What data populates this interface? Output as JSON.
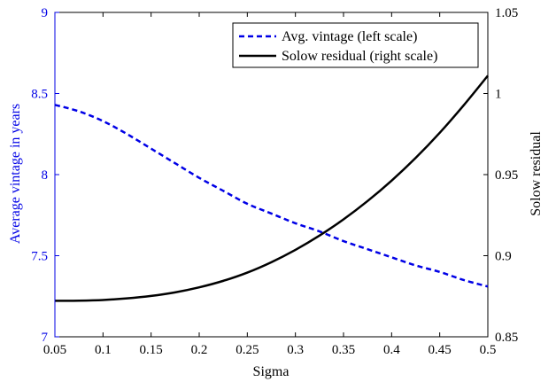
{
  "chart_data": {
    "type": "line",
    "xlabel": "Sigma",
    "ylabel_left": "Average vintage in years",
    "ylabel_right": "Solow residual",
    "xlim": [
      0.05,
      0.5
    ],
    "ylim_left": [
      7,
      9
    ],
    "ylim_right": [
      0.85,
      1.05
    ],
    "x_ticks": [
      "0.05",
      "0.1",
      "0.15",
      "0.2",
      "0.25",
      "0.3",
      "0.35",
      "0.4",
      "0.45",
      "0.5"
    ],
    "y_ticks_left": [
      "7",
      "7.5",
      "8",
      "8.5",
      "9"
    ],
    "y_ticks_right": [
      "0.85",
      "0.9",
      "0.95",
      "1",
      "1.05"
    ],
    "grid": false,
    "legend_position": "top-right",
    "colors": {
      "left_axis": "#0000e6",
      "vintage": "#0000e6",
      "residual": "#000000"
    },
    "series": [
      {
        "name": "Avg. vintage (left scale)",
        "axis": "left",
        "style": "dashed",
        "x": [
          0.05,
          0.075,
          0.1,
          0.125,
          0.15,
          0.175,
          0.2,
          0.225,
          0.25,
          0.275,
          0.3,
          0.325,
          0.35,
          0.375,
          0.4,
          0.425,
          0.45,
          0.475,
          0.5
        ],
        "values": [
          8.43,
          8.39,
          8.33,
          8.25,
          8.16,
          8.07,
          7.98,
          7.9,
          7.82,
          7.76,
          7.7,
          7.65,
          7.59,
          7.54,
          7.49,
          7.44,
          7.4,
          7.35,
          7.31
        ]
      },
      {
        "name": "Solow residual (right scale)",
        "axis": "right",
        "style": "solid",
        "x": [
          0.05,
          0.075,
          0.1,
          0.125,
          0.15,
          0.175,
          0.2,
          0.225,
          0.25,
          0.275,
          0.3,
          0.325,
          0.35,
          0.375,
          0.4,
          0.425,
          0.45,
          0.475,
          0.5
        ],
        "values": [
          0.8722,
          0.8723,
          0.8727,
          0.8737,
          0.8752,
          0.8774,
          0.8805,
          0.8845,
          0.8896,
          0.896,
          0.9036,
          0.9124,
          0.9224,
          0.9337,
          0.9463,
          0.9603,
          0.9758,
          0.9928,
          1.011
        ]
      }
    ]
  }
}
